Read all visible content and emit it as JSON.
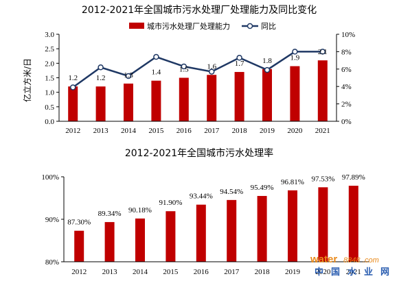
{
  "chart_data": [
    {
      "type": "bar",
      "title": "2012-2021年全国城市污水处理厂处理能力及同比变化",
      "ylabel": "亿立方米/日",
      "categories": [
        "2012",
        "2013",
        "2014",
        "2015",
        "2016",
        "2017",
        "2018",
        "2019",
        "2020",
        "2021"
      ],
      "series": [
        {
          "name": "城市污水处理厂处理能力",
          "type": "bar",
          "axis": "left",
          "color": "#c00000",
          "values": [
            1.2,
            1.2,
            1.3,
            1.4,
            1.5,
            1.6,
            1.7,
            1.8,
            1.9,
            2.1
          ],
          "labels": [
            "1.2",
            "1.2",
            "1.3",
            "1.4",
            "1.5",
            "1.6",
            "1.7",
            "1.8",
            "1.9",
            "2.1"
          ]
        },
        {
          "name": "同比",
          "type": "line",
          "axis": "right",
          "color": "#1f3864",
          "values": [
            3.9,
            6.2,
            5.2,
            7.4,
            6.3,
            5.7,
            7.3,
            5.9,
            8.0,
            8.0
          ]
        }
      ],
      "ylim": [
        0,
        3.0
      ],
      "yticks": [
        "0.0",
        "0.5",
        "1.0",
        "1.5",
        "2.0",
        "2.5",
        "3.0"
      ],
      "y2lim": [
        0,
        10
      ],
      "y2ticks": [
        "0%",
        "2%",
        "4%",
        "6%",
        "8%",
        "10%"
      ],
      "legend_position": "top"
    },
    {
      "type": "bar",
      "title": "2012-2021年全国城市污水处理率",
      "categories": [
        "2012",
        "2013",
        "2014",
        "2015",
        "2016",
        "2017",
        "2018",
        "2019",
        "2020",
        "2021"
      ],
      "series": [
        {
          "name": "城市污水处理率",
          "color": "#c00000",
          "values": [
            87.3,
            89.34,
            90.18,
            91.9,
            93.44,
            94.54,
            95.49,
            96.81,
            97.53,
            97.89
          ],
          "labels": [
            "87.30%",
            "89.34%",
            "90.18%",
            "91.90%",
            "93.44%",
            "94.54%",
            "95.49%",
            "96.81%",
            "97.53%",
            "97.89%"
          ]
        }
      ],
      "ylim": [
        80,
        100
      ],
      "yticks": [
        "80%",
        "90%",
        "100%"
      ]
    }
  ],
  "watermark": {
    "brand": "water",
    "number": "8848",
    "suffix": ".com",
    "chars": [
      "中",
      "国",
      "水",
      "业",
      "网"
    ]
  }
}
